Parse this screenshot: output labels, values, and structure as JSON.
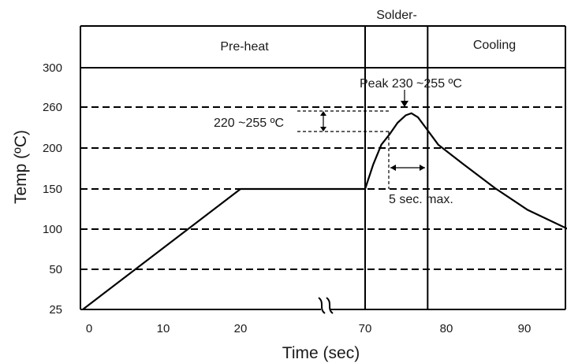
{
  "chart_data": {
    "type": "line",
    "title": "",
    "xlabel": "Time (sec)",
    "ylabel": "Temp (ºC)",
    "x_ticks": [
      "0",
      "10",
      "20",
      "70",
      "80",
      "90"
    ],
    "y_ticks": [
      "300",
      "260",
      "200",
      "150",
      "100",
      "50",
      "25"
    ],
    "axis_break_between_x": [
      20,
      70
    ],
    "grid": "dashed horizontal lines at each temperature tick",
    "zones": [
      {
        "label": "Pre-heat",
        "x_start": 0,
        "x_end": 70
      },
      {
        "label": "Solder-",
        "x_start": 70,
        "x_end": 77.7
      },
      {
        "label": "Cooling",
        "x_start": 77.7,
        "x_end": 95
      }
    ],
    "series": [
      {
        "points": [
          {
            "x": 0,
            "temp": "25"
          },
          {
            "x": 20,
            "temp": "150"
          },
          {
            "x": 70,
            "temp": "150"
          },
          {
            "x": 71,
            "temp": "180"
          },
          {
            "x": 72,
            "temp": "205"
          },
          {
            "x": 73,
            "temp": "220"
          },
          {
            "x": 74,
            "temp": "237"
          },
          {
            "x": 75,
            "temp": "248"
          },
          {
            "x": 75.7,
            "temp": "251"
          },
          {
            "x": 76.5,
            "temp": "245"
          },
          {
            "x": 77.7,
            "temp": "226"
          },
          {
            "x": 79,
            "temp": "205"
          },
          {
            "x": 82,
            "temp": "181"
          },
          {
            "x": 86,
            "temp": "151"
          },
          {
            "x": 90,
            "temp": "124"
          },
          {
            "x": 95,
            "temp": "100"
          }
        ]
      }
    ],
    "annotations": {
      "peak": "Peak 230 ~255 ºC",
      "band": "220 ~255 ºC",
      "duration": "5 sec. max."
    },
    "colors": {
      "line": "#000000",
      "background": "#ffffff"
    }
  }
}
